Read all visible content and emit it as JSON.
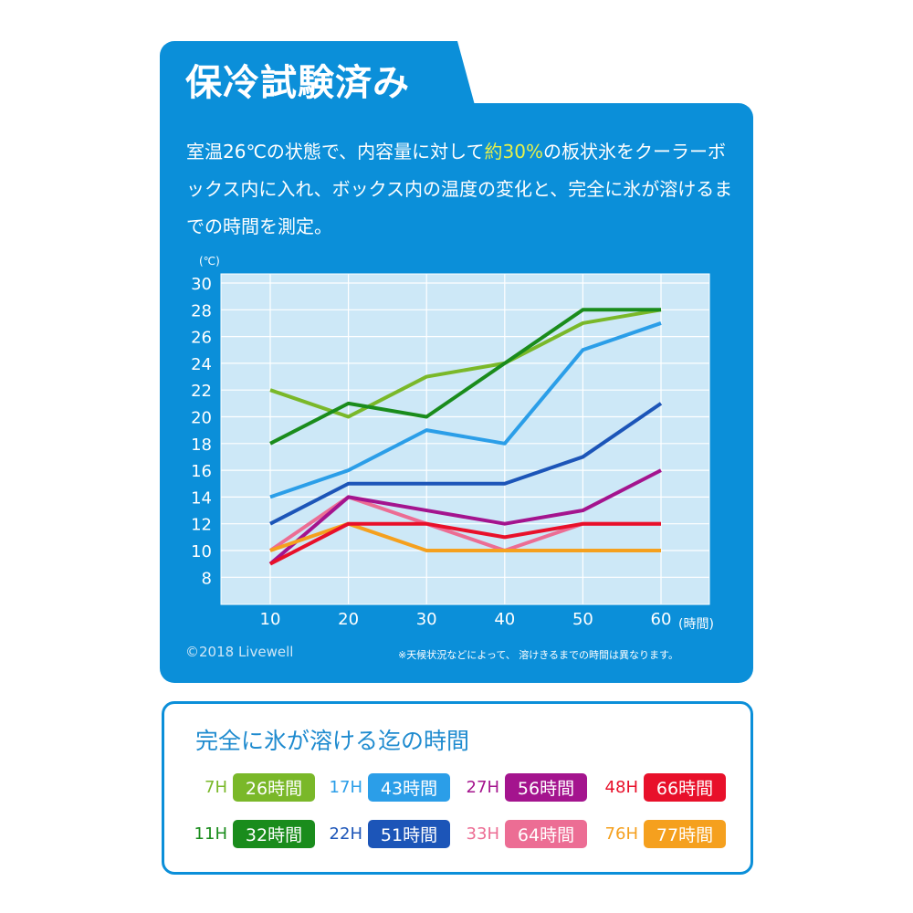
{
  "header": {
    "title": "保冷試験済み"
  },
  "description": {
    "before": "室温26℃の状態で、内容量に対して",
    "highlight": "約30%",
    "after": "の板状氷をクーラーボックス内に入れ、ボックス内の温度の変化と、完全に氷が溶けるまでの時間を測定。"
  },
  "footer": {
    "copyright": "©2018 Livewell",
    "note": "※天候状況などによって、 溶けきるまでの時間は異なります。"
  },
  "chart_data": {
    "type": "line",
    "ylabel": "(℃)",
    "xlabel": "(時間)",
    "x": [
      10,
      20,
      30,
      40,
      50,
      60
    ],
    "xlim": [
      3,
      66
    ],
    "ylim": [
      6,
      30.7
    ],
    "yticks": [
      8,
      10,
      12,
      14,
      16,
      18,
      20,
      22,
      24,
      26,
      28,
      30
    ],
    "grid": true,
    "background": "#cde8f7",
    "series": [
      {
        "name": "7H",
        "color": "#7ab829",
        "values": [
          22,
          20,
          23,
          24,
          27,
          28
        ]
      },
      {
        "name": "11H",
        "color": "#1a8c1c",
        "values": [
          18,
          21,
          20,
          24,
          28,
          28
        ]
      },
      {
        "name": "17H",
        "color": "#2b9ee8",
        "values": [
          14,
          16,
          19,
          18,
          25,
          27
        ]
      },
      {
        "name": "22H",
        "color": "#1c55b8",
        "values": [
          12,
          15,
          15,
          15,
          17,
          21
        ]
      },
      {
        "name": "33H",
        "color": "#ec6d94",
        "values": [
          10,
          14,
          12,
          10,
          12,
          12
        ]
      },
      {
        "name": "27H",
        "color": "#a4148e",
        "values": [
          9,
          14,
          13,
          12,
          13,
          16
        ]
      },
      {
        "name": "76H",
        "color": "#f5a01e",
        "values": [
          10,
          12,
          10,
          10,
          10,
          10
        ]
      },
      {
        "name": "48H",
        "color": "#e8102a",
        "values": [
          9,
          12,
          12,
          11,
          12,
          12
        ]
      }
    ]
  },
  "legend": {
    "title": "完全に氷が溶ける迄の時間",
    "items": [
      {
        "label": "7H",
        "time": "26時間",
        "color": "#7ab829"
      },
      {
        "label": "17H",
        "time": "43時間",
        "color": "#2b9ee8"
      },
      {
        "label": "27H",
        "time": "56時間",
        "color": "#a4148e"
      },
      {
        "label": "48H",
        "time": "66時間",
        "color": "#e8102a"
      },
      {
        "label": "11H",
        "time": "32時間",
        "color": "#1a8c1c"
      },
      {
        "label": "22H",
        "time": "51時間",
        "color": "#1c55b8"
      },
      {
        "label": "33H",
        "time": "64時間",
        "color": "#ec6d94"
      },
      {
        "label": "76H",
        "time": "77時間",
        "color": "#f5a01e"
      }
    ]
  }
}
